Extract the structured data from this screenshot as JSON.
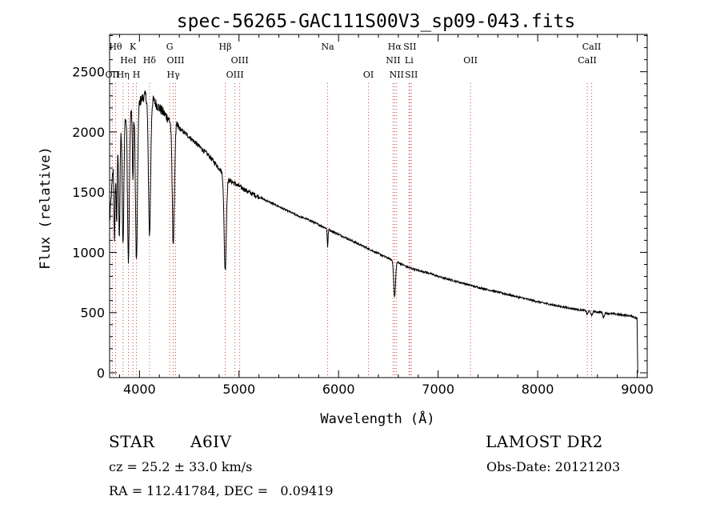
{
  "chart_data": {
    "type": "line",
    "title": "spec-56265-GAC111S00V3_sp09-043.fits",
    "xlabel": "Wavelength (Å)",
    "ylabel": "Flux (relative)",
    "xlim": [
      3700,
      9100
    ],
    "ylim": [
      -40,
      2810
    ],
    "x_ticks": [
      4000,
      5000,
      6000,
      7000,
      8000,
      9000
    ],
    "y_ticks": [
      0,
      500,
      1000,
      1500,
      2000,
      2500
    ],
    "grid": false,
    "continuum": [
      [
        3700,
        1250
      ],
      [
        3750,
        1900
      ],
      [
        3800,
        2050
      ],
      [
        3850,
        2120
      ],
      [
        3900,
        2160
      ],
      [
        3950,
        2200
      ],
      [
        4000,
        2250
      ],
      [
        4050,
        2300
      ],
      [
        4100,
        2300
      ],
      [
        4150,
        2250
      ],
      [
        4200,
        2200
      ],
      [
        4250,
        2150
      ],
      [
        4300,
        2100
      ],
      [
        4350,
        2070
      ],
      [
        4400,
        2030
      ],
      [
        4500,
        1960
      ],
      [
        4600,
        1880
      ],
      [
        4700,
        1800
      ],
      [
        4800,
        1700
      ],
      [
        4850,
        1640
      ],
      [
        4900,
        1600
      ],
      [
        5000,
        1550
      ],
      [
        5100,
        1500
      ],
      [
        5200,
        1460
      ],
      [
        5300,
        1420
      ],
      [
        5400,
        1380
      ],
      [
        5500,
        1340
      ],
      [
        5600,
        1300
      ],
      [
        5700,
        1270
      ],
      [
        5800,
        1230
      ],
      [
        5900,
        1190
      ],
      [
        6000,
        1150
      ],
      [
        6100,
        1110
      ],
      [
        6200,
        1070
      ],
      [
        6300,
        1030
      ],
      [
        6400,
        990
      ],
      [
        6500,
        950
      ],
      [
        6600,
        915
      ],
      [
        6700,
        875
      ],
      [
        6800,
        850
      ],
      [
        6900,
        830
      ],
      [
        7000,
        800
      ],
      [
        7200,
        755
      ],
      [
        7400,
        710
      ],
      [
        7600,
        670
      ],
      [
        7800,
        630
      ],
      [
        8000,
        590
      ],
      [
        8200,
        555
      ],
      [
        8400,
        525
      ],
      [
        8600,
        505
      ],
      [
        8800,
        485
      ],
      [
        8950,
        470
      ],
      [
        9000,
        450
      ],
      [
        9005,
        0
      ]
    ],
    "absorption_lines": [
      {
        "x": 3750,
        "depth": 800,
        "width": 6
      },
      {
        "x": 3771,
        "depth": 700,
        "width": 6
      },
      {
        "x": 3798,
        "depth": 900,
        "width": 7
      },
      {
        "x": 3835,
        "depth": 1050,
        "width": 8
      },
      {
        "x": 3889,
        "depth": 1200,
        "width": 9
      },
      {
        "x": 3934,
        "depth": 600,
        "width": 5
      },
      {
        "x": 3970,
        "depth": 1300,
        "width": 10
      },
      {
        "x": 4101,
        "depth": 1150,
        "width": 11
      },
      {
        "x": 4340,
        "depth": 1000,
        "width": 11
      },
      {
        "x": 4861,
        "depth": 780,
        "width": 11
      },
      {
        "x": 5890,
        "depth": 150,
        "width": 4
      },
      {
        "x": 6563,
        "depth": 300,
        "width": 9
      },
      {
        "x": 8498,
        "depth": 30,
        "width": 7
      },
      {
        "x": 8542,
        "depth": 40,
        "width": 7
      },
      {
        "x": 8662,
        "depth": 40,
        "width": 7
      }
    ],
    "line_markers": [
      {
        "x": 3727,
        "label": "OII",
        "row": 3
      },
      {
        "x": 3760,
        "label": "Hθ",
        "row": 1
      },
      {
        "x": 3835,
        "label": "Hη",
        "row": 3
      },
      {
        "x": 3889,
        "label": "HeI",
        "row": 2
      },
      {
        "x": 3934,
        "label": "K",
        "row": 1
      },
      {
        "x": 3970,
        "label": "H",
        "row": 3
      },
      {
        "x": 4101,
        "label": "Hδ",
        "row": 2
      },
      {
        "x": 4304,
        "label": "G",
        "row": 1
      },
      {
        "x": 4340,
        "label": "Hγ",
        "row": 3
      },
      {
        "x": 4363,
        "label": "OIII",
        "row": 2
      },
      {
        "x": 4861,
        "label": "Hβ",
        "row": 1
      },
      {
        "x": 4959,
        "label": "OIII",
        "row": 3
      },
      {
        "x": 5007,
        "label": "OIII",
        "row": 2
      },
      {
        "x": 5890,
        "label": "Na",
        "row": 1
      },
      {
        "x": 6300,
        "label": "OI",
        "row": 3
      },
      {
        "x": 6548,
        "label": "NII",
        "row": 2
      },
      {
        "x": 6563,
        "label": "Hα",
        "row": 1
      },
      {
        "x": 6583,
        "label": "NII",
        "row": 3
      },
      {
        "x": 6708,
        "label": "Li",
        "row": 2
      },
      {
        "x": 6716,
        "label": "SII",
        "row": 1
      },
      {
        "x": 6731,
        "label": "SII",
        "row": 3
      },
      {
        "x": 7325,
        "label": "OII",
        "row": 2
      },
      {
        "x": 8498,
        "label": "CaII",
        "row": 2
      },
      {
        "x": 8542,
        "label": "CaII",
        "row": 1
      }
    ]
  },
  "info": {
    "object_type": "STAR",
    "subclass": "A6IV",
    "survey": "LAMOST DR2",
    "redshift": "cz = 25.2 ± 33.0 km/s",
    "obs_date": "Obs-Date: 20121203",
    "coords": "RA = 112.41784, DEC =   0.09419"
  },
  "colors": {
    "spectrum": "#000000",
    "marker_line": "#d04040",
    "axes": "#000000"
  }
}
